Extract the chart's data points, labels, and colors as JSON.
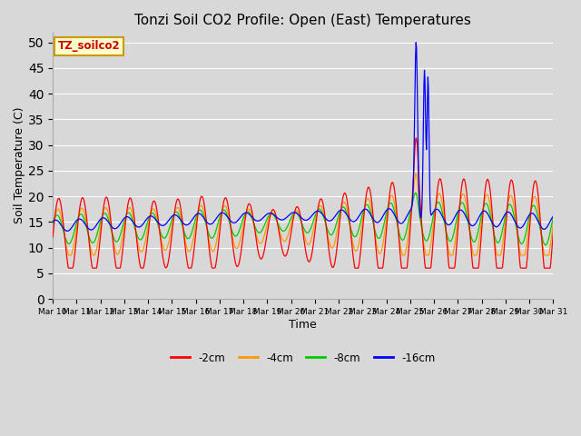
{
  "title": "Tonzi Soil CO2 Profile: Open (East) Temperatures",
  "xlabel": "Time",
  "ylabel": "Soil Temperature (C)",
  "ylim": [
    0,
    52
  ],
  "yticks": [
    0,
    5,
    10,
    15,
    20,
    25,
    30,
    35,
    40,
    45,
    50
  ],
  "legend_label": "TZ_soilco2",
  "series_labels": [
    "-2cm",
    "-4cm",
    "-8cm",
    "-16cm"
  ],
  "series_colors": [
    "#ff0000",
    "#ff9900",
    "#00cc00",
    "#0000ff"
  ],
  "background_color": "#d8d8d8",
  "plot_bg_color": "#d8d8d8",
  "grid_color": "#ffffff",
  "n_days": 21,
  "start_day": 10,
  "figwidth": 6.4,
  "figheight": 4.8,
  "dpi": 100
}
